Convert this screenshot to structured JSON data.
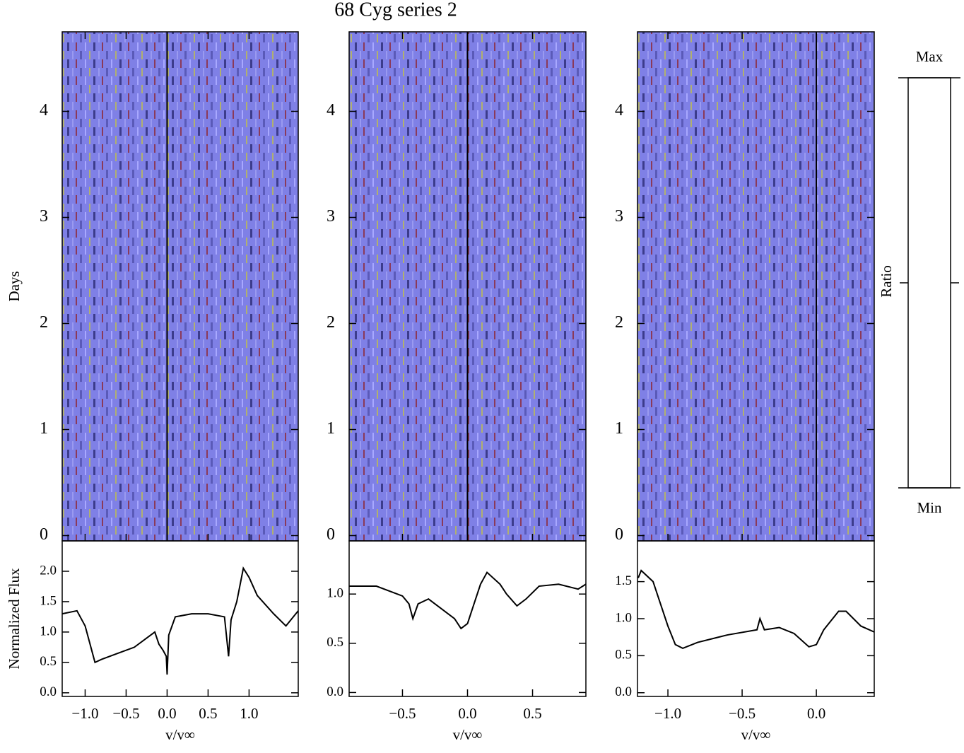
{
  "title": "68 Cyg series 2",
  "chart_data": [
    {
      "type": "heatmap",
      "xlim": [
        -1.28,
        1.6
      ],
      "xticks": [
        -1,
        -0.5,
        0,
        0.5,
        1
      ],
      "ylim": [
        -0.05,
        4.75
      ],
      "yticks": [
        0,
        1,
        2,
        3,
        4
      ],
      "ylabel": "Days"
    },
    {
      "type": "line",
      "xlabel": "v/v∞",
      "ylabel": "Normalized Flux",
      "color": "#000000",
      "xlim": [
        -1.28,
        1.6
      ],
      "ylim": [
        -0.06,
        2.5
      ],
      "xticks": [
        {
          "value": -1,
          "label": "−1.0"
        },
        {
          "value": -0.5,
          "label": "−0.5"
        },
        {
          "value": 0,
          "label": "0.0"
        },
        {
          "value": 0.5,
          "label": "0.5"
        },
        {
          "value": 1,
          "label": "1.0"
        }
      ],
      "yticks": [
        {
          "value": 0,
          "label": "0.0"
        },
        {
          "value": 0.5,
          "label": "0.5"
        },
        {
          "value": 1,
          "label": "1.0"
        },
        {
          "value": 1.5,
          "label": "1.5"
        },
        {
          "value": 2,
          "label": "2.0"
        }
      ],
      "x": [
        -1.28,
        -1.1,
        -1.0,
        -0.92,
        -0.88,
        -0.8,
        -0.6,
        -0.4,
        -0.2,
        -0.15,
        -0.1,
        -0.05,
        -0.01,
        0.0,
        0.02,
        0.1,
        0.3,
        0.5,
        0.7,
        0.75,
        0.78,
        0.85,
        0.93,
        1.0,
        1.1,
        1.3,
        1.45,
        1.6
      ],
      "values": [
        1.3,
        1.35,
        1.1,
        0.7,
        0.5,
        0.55,
        0.65,
        0.75,
        0.95,
        1.0,
        0.8,
        0.7,
        0.6,
        0.3,
        0.95,
        1.25,
        1.3,
        1.3,
        1.25,
        0.6,
        1.2,
        1.5,
        2.05,
        1.9,
        1.6,
        1.3,
        1.1,
        1.35
      ]
    },
    {
      "type": "heatmap",
      "xlim": [
        -0.91,
        0.91
      ],
      "xticks": [
        -0.5,
        0,
        0.5
      ],
      "ylim": [
        -0.05,
        4.75
      ],
      "yticks": [
        0,
        1,
        2,
        3,
        4
      ]
    },
    {
      "type": "line",
      "xlabel": "v/v∞",
      "color": "#000000",
      "xlim": [
        -0.91,
        0.91
      ],
      "ylim": [
        -0.04,
        1.54
      ],
      "xticks": [
        {
          "value": -0.5,
          "label": "−0.5"
        },
        {
          "value": 0,
          "label": "0.0"
        },
        {
          "value": 0.5,
          "label": "0.5"
        }
      ],
      "yticks": [
        {
          "value": 0,
          "label": "0.0"
        },
        {
          "value": 0.5,
          "label": "0.5"
        },
        {
          "value": 1,
          "label": "1.0"
        }
      ],
      "x": [
        -0.91,
        -0.7,
        -0.5,
        -0.45,
        -0.42,
        -0.38,
        -0.3,
        -0.2,
        -0.1,
        -0.05,
        0.0,
        0.05,
        0.1,
        0.15,
        0.25,
        0.3,
        0.38,
        0.45,
        0.55,
        0.7,
        0.85,
        0.91
      ],
      "values": [
        1.08,
        1.08,
        0.98,
        0.9,
        0.75,
        0.9,
        0.95,
        0.85,
        0.75,
        0.65,
        0.7,
        0.9,
        1.1,
        1.22,
        1.1,
        1.0,
        0.88,
        0.95,
        1.08,
        1.1,
        1.05,
        1.1
      ]
    },
    {
      "type": "heatmap",
      "xlim": [
        -1.205,
        0.39
      ],
      "xticks": [
        -1,
        -0.5,
        0
      ],
      "ylim": [
        -0.05,
        4.75
      ],
      "yticks": [
        0,
        1,
        2,
        3,
        4
      ]
    },
    {
      "type": "line",
      "xlabel": "v/v∞",
      "color": "#000000",
      "xlim": [
        -1.205,
        0.39
      ],
      "ylim": [
        -0.05,
        2.05
      ],
      "xticks": [
        {
          "value": -1,
          "label": "−1.0"
        },
        {
          "value": -0.5,
          "label": "−0.5"
        },
        {
          "value": 0,
          "label": "0.0"
        }
      ],
      "yticks": [
        {
          "value": 0,
          "label": "0.0"
        },
        {
          "value": 0.5,
          "label": "0.5"
        },
        {
          "value": 1,
          "label": "1.0"
        },
        {
          "value": 1.5,
          "label": "1.5"
        }
      ],
      "x": [
        -1.2,
        -1.18,
        -1.1,
        -1.05,
        -1.0,
        -0.95,
        -0.9,
        -0.8,
        -0.6,
        -0.4,
        -0.38,
        -0.35,
        -0.25,
        -0.15,
        -0.05,
        0.0,
        0.05,
        0.15,
        0.2,
        0.3,
        0.39
      ],
      "values": [
        1.55,
        1.65,
        1.5,
        1.2,
        0.9,
        0.65,
        0.6,
        0.68,
        0.78,
        0.85,
        1.0,
        0.85,
        0.88,
        0.8,
        0.62,
        0.65,
        0.85,
        1.1,
        1.1,
        0.9,
        0.82
      ]
    },
    {
      "type": "colorbar",
      "max_label": "Max",
      "min_label": "Min",
      "label": "Ratio",
      "colors": [
        "#000000",
        "#ff1a1a",
        "#7a1f45",
        "#1a4a7a",
        "#3a3a8a",
        "#7f7fff",
        "#a0a0a0",
        "#c0c000",
        "#ffffff"
      ]
    }
  ]
}
